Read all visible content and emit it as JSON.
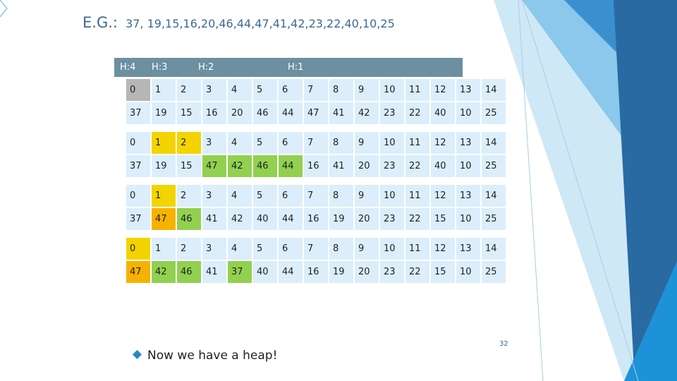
{
  "title": {
    "label": "E.G.:",
    "sequence": "37, 19,15,16,20,46,44,47,41,42,23,22,40,10,25"
  },
  "height_labels": [
    "H:4",
    "H:3",
    "H:2",
    "H:1"
  ],
  "blocks": [
    {
      "indices": [
        "0",
        "1",
        "2",
        "3",
        "4",
        "5",
        "6",
        "7",
        "8",
        "9",
        "10",
        "11",
        "12",
        "13",
        "14"
      ],
      "values": [
        "37",
        "19",
        "15",
        "16",
        "20",
        "46",
        "44",
        "47",
        "41",
        "42",
        "23",
        "22",
        "40",
        "10",
        "25"
      ]
    },
    {
      "indices": [
        "0",
        "1",
        "2",
        "3",
        "4",
        "5",
        "6",
        "7",
        "8",
        "9",
        "10",
        "11",
        "12",
        "13",
        "14"
      ],
      "values": [
        "37",
        "19",
        "15",
        "47",
        "42",
        "46",
        "44",
        "16",
        "41",
        "20",
        "23",
        "22",
        "40",
        "10",
        "25"
      ]
    },
    {
      "indices": [
        "0",
        "1",
        "2",
        "3",
        "4",
        "5",
        "6",
        "7",
        "8",
        "9",
        "10",
        "11",
        "12",
        "13",
        "14"
      ],
      "values": [
        "37",
        "47",
        "46",
        "41",
        "42",
        "40",
        "44",
        "16",
        "19",
        "20",
        "23",
        "22",
        "15",
        "10",
        "25"
      ]
    },
    {
      "indices": [
        "0",
        "1",
        "2",
        "3",
        "4",
        "5",
        "6",
        "7",
        "8",
        "9",
        "10",
        "11",
        "12",
        "13",
        "14"
      ],
      "values": [
        "47",
        "42",
        "46",
        "41",
        "37",
        "40",
        "44",
        "16",
        "19",
        "20",
        "23",
        "22",
        "15",
        "10",
        "25"
      ]
    }
  ],
  "highlight_colors": {
    "gray": "#b6b6b6",
    "yellow": "#f3d400",
    "orange": "#f7b200",
    "green": "#92d050",
    "default_cell": "#dceefb",
    "header_bar": "#6c8fa1"
  },
  "bullet_icon": "diamond-bullet-icon",
  "note": "Now we have a heap!",
  "page_number": "32"
}
